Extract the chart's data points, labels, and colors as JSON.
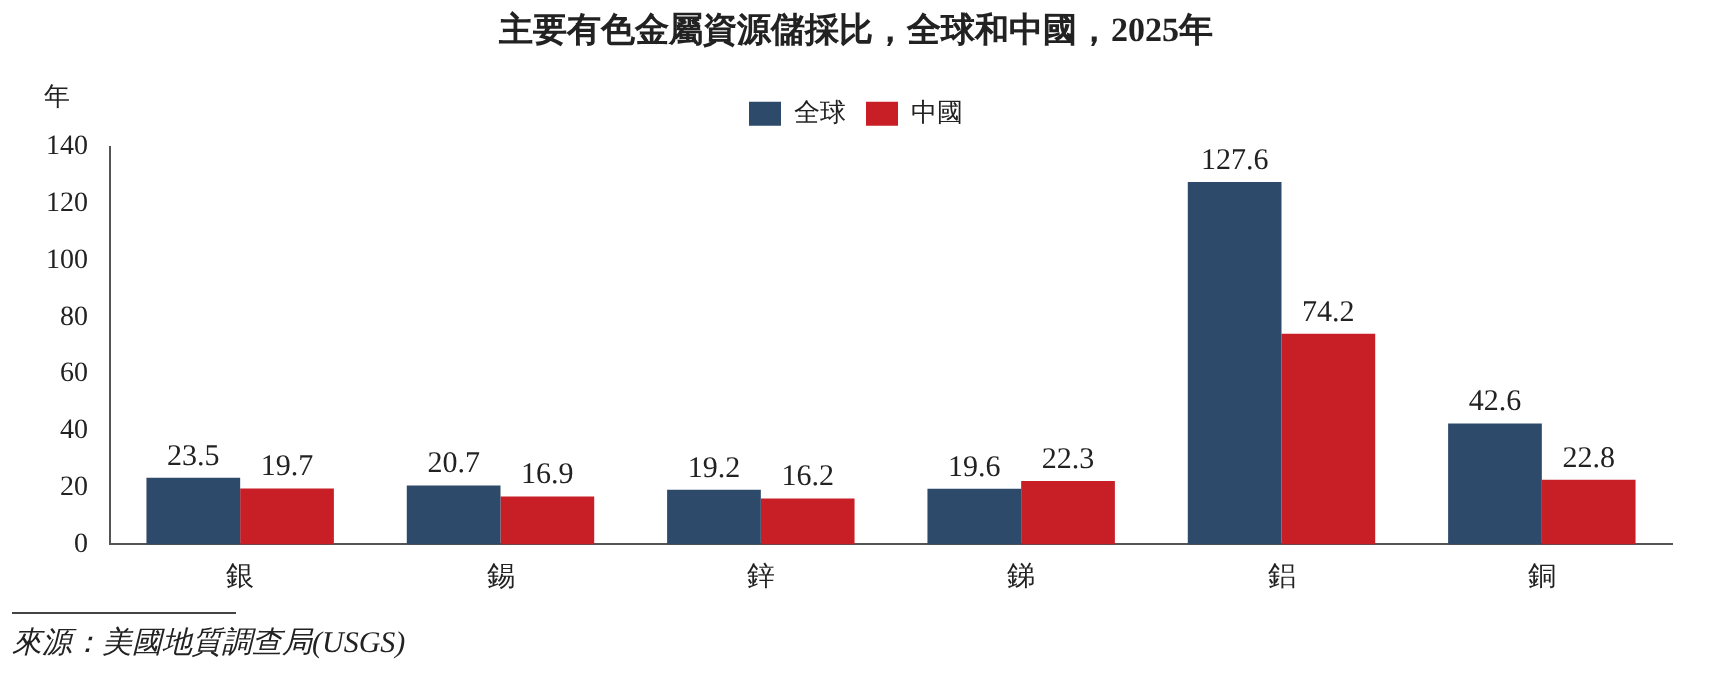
{
  "chart_data": {
    "type": "bar",
    "title": "主要有色金屬資源儲採比，全球和中國，2025年",
    "ylabel": "年",
    "categories": [
      "銀",
      "錫",
      "鋅",
      "銻",
      "鋁",
      "銅"
    ],
    "series": [
      {
        "name": "全球",
        "color": "#2e4a6b",
        "values": [
          23.5,
          20.7,
          19.2,
          19.6,
          127.6,
          42.6
        ]
      },
      {
        "name": "中國",
        "color": "#c81f27",
        "values": [
          19.7,
          16.9,
          16.2,
          22.3,
          74.2,
          22.8
        ]
      }
    ],
    "ylim": [
      0,
      140
    ],
    "yticks": [
      0,
      20,
      40,
      60,
      80,
      100,
      120,
      140
    ],
    "grid": false,
    "legend": "top",
    "data_labels": true,
    "annotations": [
      "來源：美國地質調查局(USGS)"
    ]
  }
}
